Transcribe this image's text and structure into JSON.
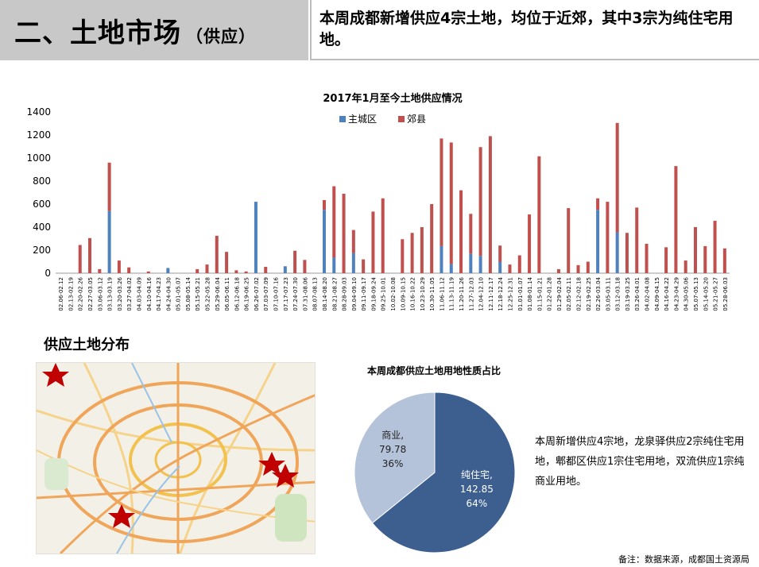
{
  "header": {
    "title": "二、土地市场",
    "title_sub": "（供应）",
    "summary": "本周成都新增供应4宗土地，均位于近郊，其中3宗为纯住宅用地。"
  },
  "section_title": "供应土地分布",
  "description": "本周新增供应4宗地，龙泉驿供应2宗纯住宅用地，郫都区供应1宗住宅用地，双流供应1宗纯商业用地。",
  "footnote": "备注：数据来源，成都国土资源局",
  "colors": {
    "main_city": "#4f81bd",
    "suburb": "#c0504d",
    "pie_residential": "#3d5f8f",
    "pie_commercial": "#b4c3da"
  },
  "chart_data": [
    {
      "type": "bar",
      "stacked": true,
      "title": "2017年1月至今土地供应情况",
      "ylim": [
        0,
        1400
      ],
      "yticks": [
        0,
        200,
        400,
        600,
        800,
        1000,
        1200,
        1400
      ],
      "legend_position": "top-center",
      "categories": [
        "02.06-02.12",
        "02.13-02.19",
        "02.20-02.26",
        "02.27-03.05",
        "03.06-03.12",
        "03.13-03.19",
        "03.20-03.26",
        "03.27-04.02",
        "04.03-04.09",
        "04.10-04.16",
        "04.17-04.23",
        "04.24-04.30",
        "05.01-05.07",
        "05.08-05.14",
        "05.15-05.21",
        "05.22-05.28",
        "05.29-06.04",
        "06.05-06.11",
        "06.12-06.18",
        "06.19-06.25",
        "06.26-07.02",
        "07.03-07.09",
        "07.10-07.16",
        "07.17-07.23",
        "07.24-07.30",
        "07.31-08.06",
        "08.07-08.13",
        "08.14-08.20",
        "08.21-08.27",
        "08.28-09.03",
        "09.04-09.10",
        "09.11-09.17",
        "09.18-09.24",
        "09.25-10.01",
        "10.02-10.08",
        "10.09-10.15",
        "10.16-10.22",
        "10.23-10.29",
        "10.30-11.05",
        "11.06-11.12",
        "11.13-11.19",
        "11.20-11.26",
        "11.27-12.03",
        "12.04-12.10",
        "12.11-12.17",
        "12.18-12.24",
        "12.25-12.31",
        "01.01-01.07",
        "01.08-01.14",
        "01.15-01.21",
        "01.22-01.28",
        "01.29-02.04",
        "02.05-02.11",
        "02.12-02.18",
        "02.19-02.25",
        "02.26-03.04",
        "03.05-03.11",
        "03.12-03.18",
        "03.19-03.25",
        "03.26-04.01",
        "04.02-04.08",
        "04.09-04.15",
        "04.16-04.22",
        "04.23-04.29",
        "04.30-05.06",
        "05.07-05.13",
        "05.14-05.20",
        "05.21-05.27",
        "05.28-06.03"
      ],
      "series": [
        {
          "name": "主城区",
          "values": [
            0,
            0,
            0,
            0,
            0,
            540,
            0,
            0,
            0,
            0,
            0,
            45,
            0,
            0,
            0,
            0,
            0,
            0,
            0,
            0,
            620,
            0,
            0,
            60,
            0,
            0,
            0,
            550,
            135,
            0,
            175,
            0,
            0,
            0,
            0,
            0,
            0,
            0,
            0,
            235,
            80,
            0,
            170,
            150,
            0,
            100,
            0,
            0,
            0,
            0,
            0,
            0,
            0,
            0,
            0,
            550,
            0,
            355,
            0,
            0,
            0,
            0,
            0,
            0,
            0,
            0,
            0,
            0,
            0
          ]
        },
        {
          "name": "郊县",
          "values": [
            0,
            0,
            245,
            305,
            35,
            420,
            110,
            50,
            0,
            15,
            0,
            0,
            0,
            0,
            35,
            75,
            325,
            185,
            25,
            15,
            0,
            55,
            0,
            0,
            195,
            115,
            0,
            85,
            620,
            690,
            200,
            120,
            535,
            650,
            0,
            295,
            350,
            400,
            600,
            935,
            1055,
            720,
            345,
            945,
            1190,
            140,
            75,
            155,
            510,
            1015,
            0,
            35,
            565,
            70,
            100,
            100,
            620,
            950,
            350,
            570,
            255,
            0,
            225,
            930,
            110,
            400,
            235,
            455,
            215
          ]
        }
      ]
    },
    {
      "type": "pie",
      "title": "本周成都供应土地用地性质占比",
      "slices": [
        {
          "name": "纯住宅",
          "value": 142.85,
          "percent": "64%"
        },
        {
          "name": "商业",
          "value": 79.78,
          "percent": "36%"
        }
      ]
    }
  ]
}
